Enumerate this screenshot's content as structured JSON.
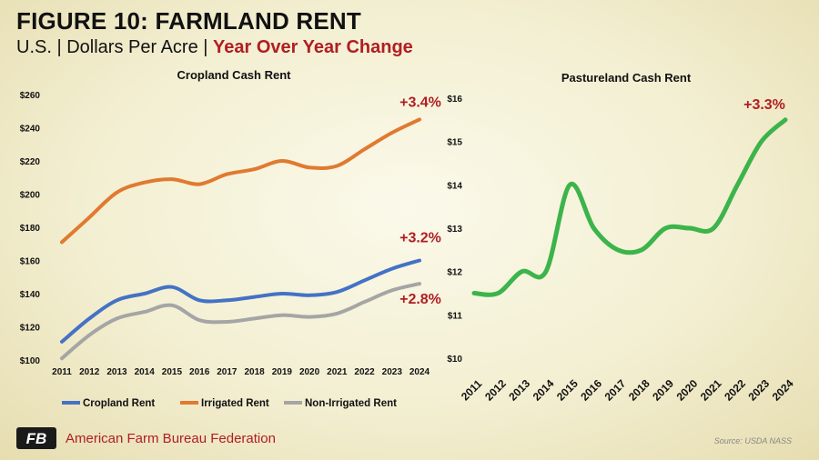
{
  "header": {
    "title": "FIGURE 10: FARMLAND RENT",
    "subtitle_plain": "U.S. | Dollars Per Acre | ",
    "subtitle_highlight": "Year Over Year Change"
  },
  "footer": {
    "org_name": "American Farm Bureau Federation",
    "org_mark": "FB",
    "source": "Source: USDA NASS"
  },
  "colors": {
    "accent_red": "#b01e23",
    "cropland": "#4472c4",
    "irrigated": "#e07a30",
    "non_irrigated": "#a5a5a5",
    "pasture": "#3cb44b"
  },
  "chart_data": [
    {
      "type": "line",
      "title": "Cropland Cash Rent",
      "xlabel": "",
      "ylabel": "",
      "x": [
        "2011",
        "2012",
        "2013",
        "2014",
        "2015",
        "2016",
        "2017",
        "2018",
        "2019",
        "2020",
        "2021",
        "2022",
        "2023",
        "2024"
      ],
      "ylim": [
        100,
        260
      ],
      "yticks": [
        "$100",
        "$120",
        "$140",
        "$160",
        "$180",
        "$200",
        "$220",
        "$240",
        "$260"
      ],
      "grid": false,
      "legend": "bottom",
      "series": [
        {
          "name": "Cropland Rent",
          "color": "#4472c4",
          "values": [
            111,
            125,
            136,
            140,
            144,
            136,
            136,
            138,
            140,
            139,
            141,
            148,
            155,
            160
          ]
        },
        {
          "name": "Irrigated Rent",
          "color": "#e07a30",
          "values": [
            171,
            186,
            201,
            207,
            209,
            206,
            212,
            215,
            220,
            216,
            217,
            227,
            237,
            245
          ]
        },
        {
          "name": "Non-Irrigated Rent",
          "color": "#a5a5a5",
          "values": [
            101,
            115,
            125,
            129,
            133,
            124,
            123,
            125,
            127,
            126,
            128,
            135,
            142,
            146
          ]
        }
      ],
      "annotations": [
        {
          "text": "+3.4%",
          "series": "Irrigated Rent"
        },
        {
          "text": "+3.2%",
          "series": "Cropland Rent"
        },
        {
          "text": "+2.8%",
          "series": "Non-Irrigated Rent"
        }
      ]
    },
    {
      "type": "line",
      "title": "Pastureland Cash Rent",
      "xlabel": "",
      "ylabel": "",
      "x": [
        "2011",
        "2012",
        "2013",
        "2014",
        "2015",
        "2016",
        "2017",
        "2018",
        "2019",
        "2020",
        "2021",
        "2022",
        "2023",
        "2024"
      ],
      "ylim": [
        10,
        16
      ],
      "yticks": [
        "$10",
        "$11",
        "$12",
        "$13",
        "$14",
        "$15",
        "$16"
      ],
      "grid": false,
      "series": [
        {
          "color": "#3cb44b",
          "values": [
            11.5,
            11.5,
            12.0,
            12.0,
            14.0,
            13.0,
            12.5,
            12.5,
            13.0,
            13.0,
            13.0,
            14.0,
            15.0,
            15.5
          ]
        }
      ],
      "annotations": [
        {
          "text": "+3.3%"
        }
      ]
    }
  ]
}
